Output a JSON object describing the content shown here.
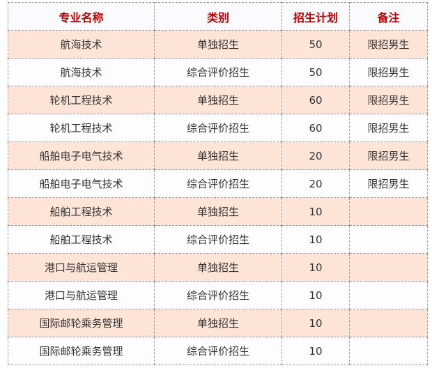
{
  "table": {
    "headers": [
      "专业名称",
      "类别",
      "招生计划",
      "备注"
    ],
    "rows": [
      [
        "航海技术",
        "单独招生",
        "50",
        "限招男生"
      ],
      [
        "航海技术",
        "综合评价招生",
        "50",
        "限招男生"
      ],
      [
        "轮机工程技术",
        "单独招生",
        "60",
        "限招男生"
      ],
      [
        "轮机工程技术",
        "综合评价招生",
        "60",
        "限招男生"
      ],
      [
        "船舶电子电气技术",
        "单独招生",
        "20",
        "限招男生"
      ],
      [
        "船舶电子电气技术",
        "综合评价招生",
        "20",
        "限招男生"
      ],
      [
        "船舶工程技术",
        "单独招生",
        "10",
        ""
      ],
      [
        "船舶工程技术",
        "综合评价招生",
        "10",
        ""
      ],
      [
        "港口与航运管理",
        "单独招生",
        "10",
        ""
      ],
      [
        "港口与航运管理",
        "综合评价招生",
        "10",
        ""
      ],
      [
        "国际邮轮乘务管理",
        "单独招生",
        "10",
        ""
      ],
      [
        "国际邮轮乘务管理",
        "综合评价招生",
        "10",
        ""
      ]
    ],
    "colors": {
      "header_text": "#c00000",
      "odd_row": "#fce4d6",
      "even_row": "#fdfdff",
      "border": "#9a9a9a"
    }
  }
}
